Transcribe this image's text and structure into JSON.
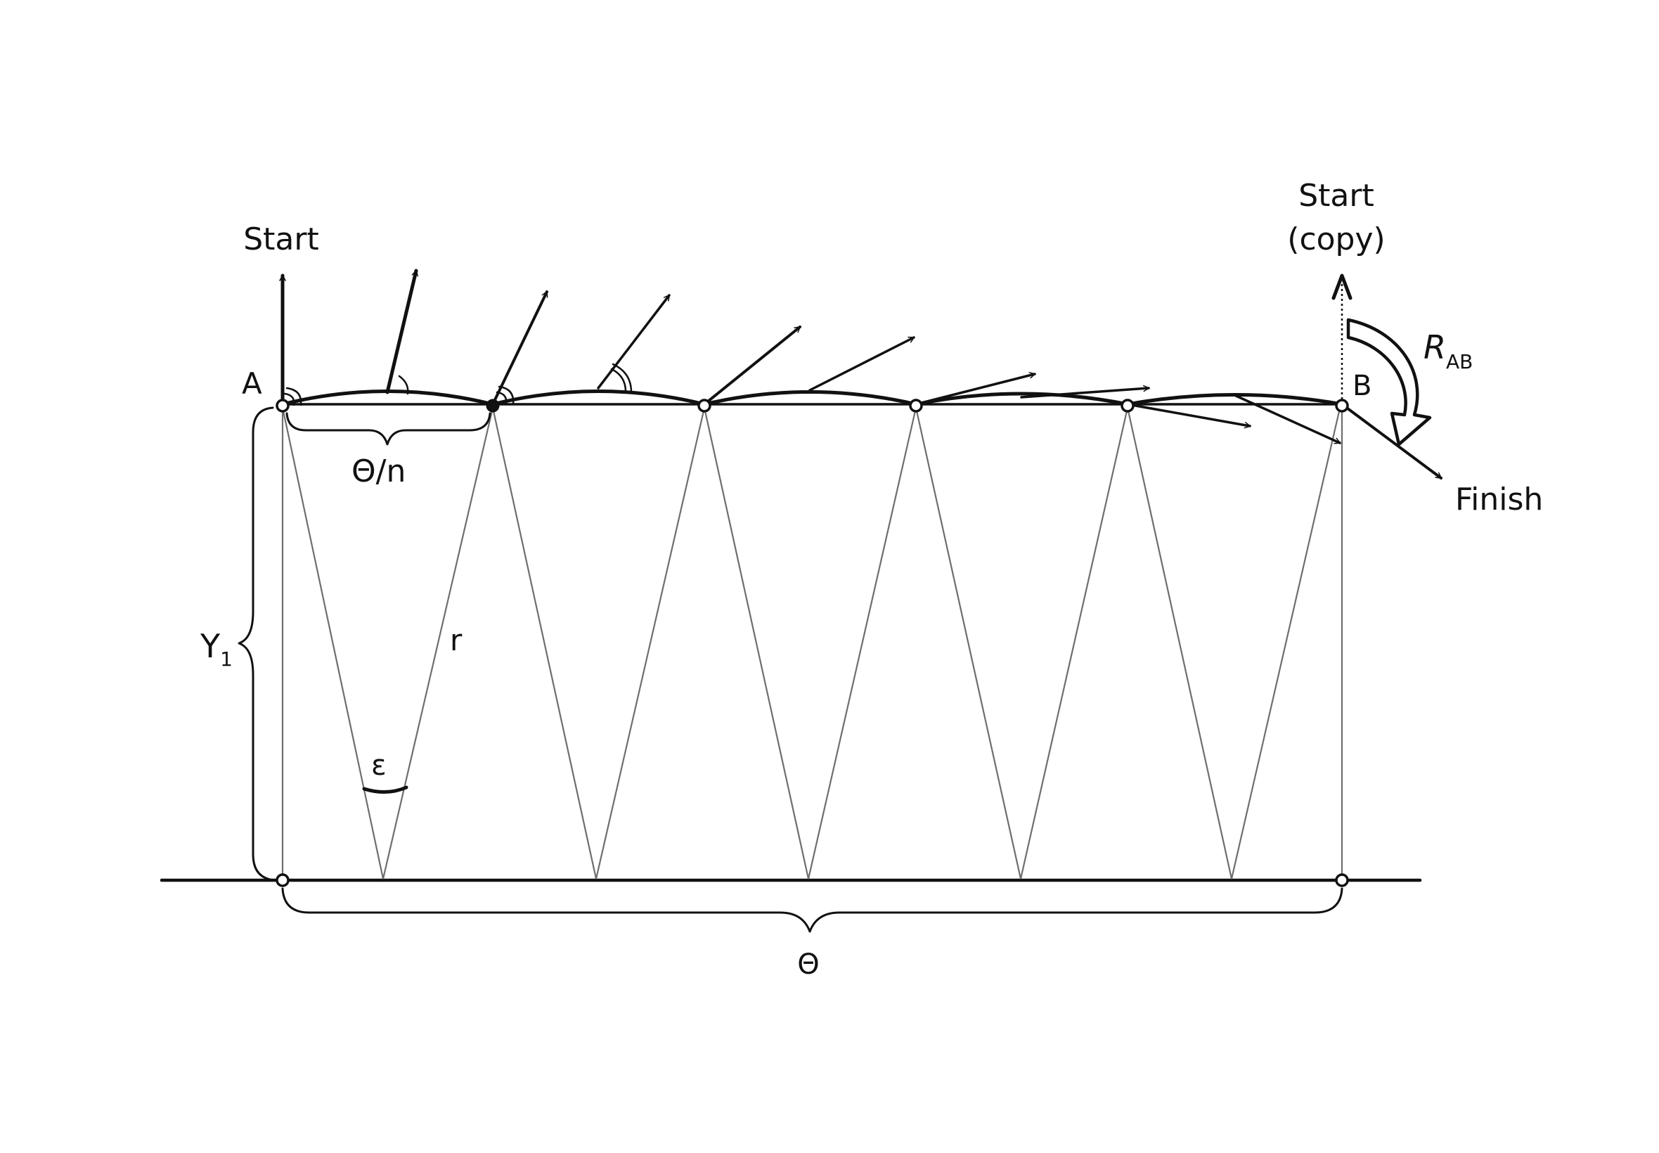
{
  "labels": {
    "start": "Start",
    "start_copy_line1": "Start",
    "start_copy_line2": "(copy)",
    "point_a": "A",
    "point_b": "B",
    "rotation_main": "R",
    "rotation_sub": "AB",
    "finish": "Finish",
    "theta_over_n": "Θ/n",
    "y1_main": "Y",
    "y1_sub": "1",
    "r": "r",
    "epsilon": "ε",
    "theta": "Θ"
  },
  "colors": {
    "ink": "#111111",
    "construction_line": "#6e6e6e",
    "background": "#ffffff"
  }
}
